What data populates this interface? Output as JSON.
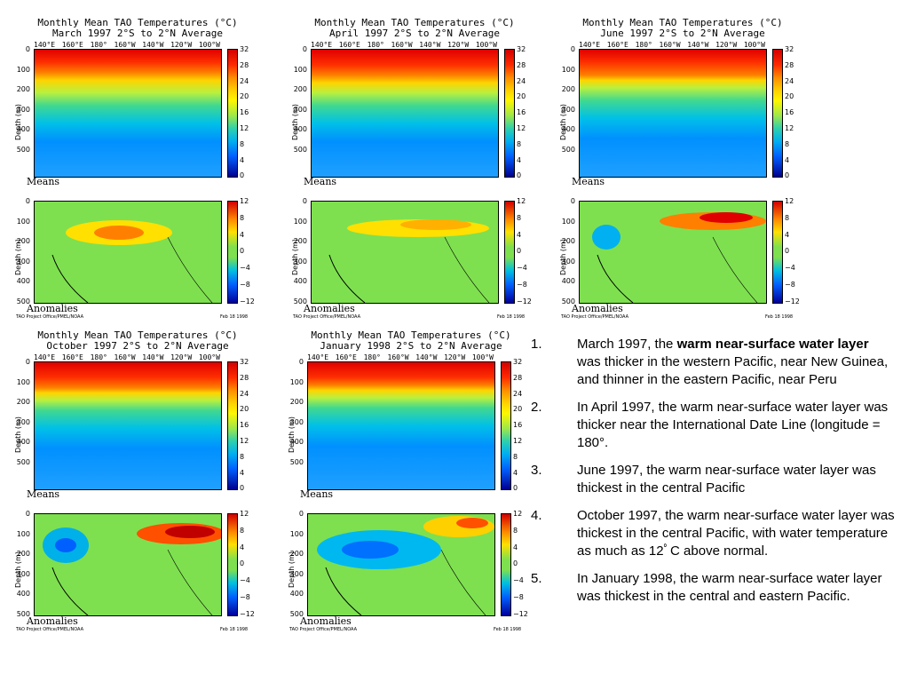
{
  "panels": [
    {
      "title": "Monthly Mean TAO Temperatures (°C)",
      "subtitle": "March 1997   2°S to 2°N Average",
      "variant": "mar"
    },
    {
      "title": "Monthly Mean TAO Temperatures (°C)",
      "subtitle": "April 1997   2°S to 2°N Average",
      "variant": "apr"
    },
    {
      "title": "Monthly Mean TAO Temperatures (°C)",
      "subtitle": "June 1997   2°S to 2°N Average",
      "variant": "jun"
    },
    {
      "title": "Monthly Mean TAO Temperatures (°C)",
      "subtitle": "October 1997   2°S to 2°N Average",
      "variant": "oct"
    },
    {
      "title": "Monthly Mean TAO Temperatures (°C)",
      "subtitle": "January 1998   2°S to 2°N Average",
      "variant": "jan"
    }
  ],
  "common": {
    "lon_labels": [
      "140°E",
      "160°E",
      "180°",
      "160°W",
      "140°W",
      "120°W",
      "100°W"
    ],
    "ylabel": "Depth (m)",
    "depth_ticks": [
      "0",
      "100",
      "200",
      "300",
      "400",
      "500"
    ],
    "mean_cbar_ticks": [
      "32",
      "28",
      "24",
      "20",
      "16",
      "12",
      "8",
      "4",
      "0"
    ],
    "anom_cbar_ticks": [
      "12",
      "8",
      "4",
      "0",
      "−4",
      "−8",
      "−12"
    ],
    "means_label": "Means",
    "anomalies_label": "Anomalies",
    "footer_left": "TAO Project Office/PMEL/NOAA",
    "footer_right": "Feb 18 1998"
  },
  "notes": [
    {
      "num": "1.",
      "text_pre": "March 1997, the ",
      "text_bold": "warm near-surface water layer",
      "text_post": " was thicker in the western Pacific, near New Guinea, and thinner in the eastern Pacific, near Peru"
    },
    {
      "num": "2.",
      "text_pre": "In April 1997, the warm near-surface water layer was thicker near the International Date Line (longitude = 180°.",
      "text_bold": "",
      "text_post": ""
    },
    {
      "num": "3.",
      "text_pre": "June 1997, the warm near-surface water layer was thickest in the central Pacific",
      "text_bold": "",
      "text_post": ""
    },
    {
      "num": "4.",
      "text_pre": "October 1997, the warm near-surface water layer was thickest in the central Pacific, with water temperature as much as 12ﾟC above normal.",
      "text_bold": "",
      "text_post": ""
    },
    {
      "num": "5.",
      "text_pre": "In January 1998, the warm near-surface water layer was thickest in the central and eastern Pacific.",
      "text_bold": "",
      "text_post": ""
    }
  ]
}
